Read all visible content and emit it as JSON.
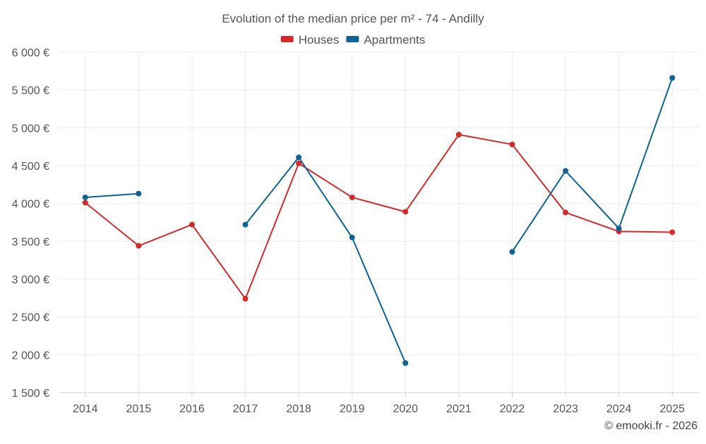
{
  "chart_data": {
    "type": "line",
    "title": "Evolution of the median price per m² - 74 - Andilly",
    "categories": [
      "2014",
      "2015",
      "2016",
      "2017",
      "2018",
      "2019",
      "2020",
      "2021",
      "2022",
      "2023",
      "2024",
      "2025"
    ],
    "ylim": [
      1500,
      6000
    ],
    "yticks": [
      {
        "value": 1500,
        "label": "1 500 €"
      },
      {
        "value": 2000,
        "label": "2 000 €"
      },
      {
        "value": 2500,
        "label": "2 500 €"
      },
      {
        "value": 3000,
        "label": "3 000 €"
      },
      {
        "value": 3500,
        "label": "3 500 €"
      },
      {
        "value": 4000,
        "label": "4 000 €"
      },
      {
        "value": 4500,
        "label": "4 500 €"
      },
      {
        "value": 5000,
        "label": "5 000 €"
      },
      {
        "value": 5500,
        "label": "5 500 €"
      },
      {
        "value": 6000,
        "label": "6 000 €"
      }
    ],
    "grid": true,
    "legend_position": "top-center",
    "series": [
      {
        "name": "Houses",
        "color": "#d42a2a",
        "values": [
          4010,
          3440,
          3720,
          2740,
          4530,
          4080,
          3890,
          4910,
          4780,
          3880,
          3630,
          3620
        ]
      },
      {
        "name": "Apartments",
        "color": "#0e6396",
        "values": [
          4080,
          4130,
          null,
          3720,
          4610,
          3550,
          1890,
          null,
          3360,
          4430,
          3670,
          5660
        ]
      }
    ]
  },
  "credit": "© emooki.fr - 2026"
}
